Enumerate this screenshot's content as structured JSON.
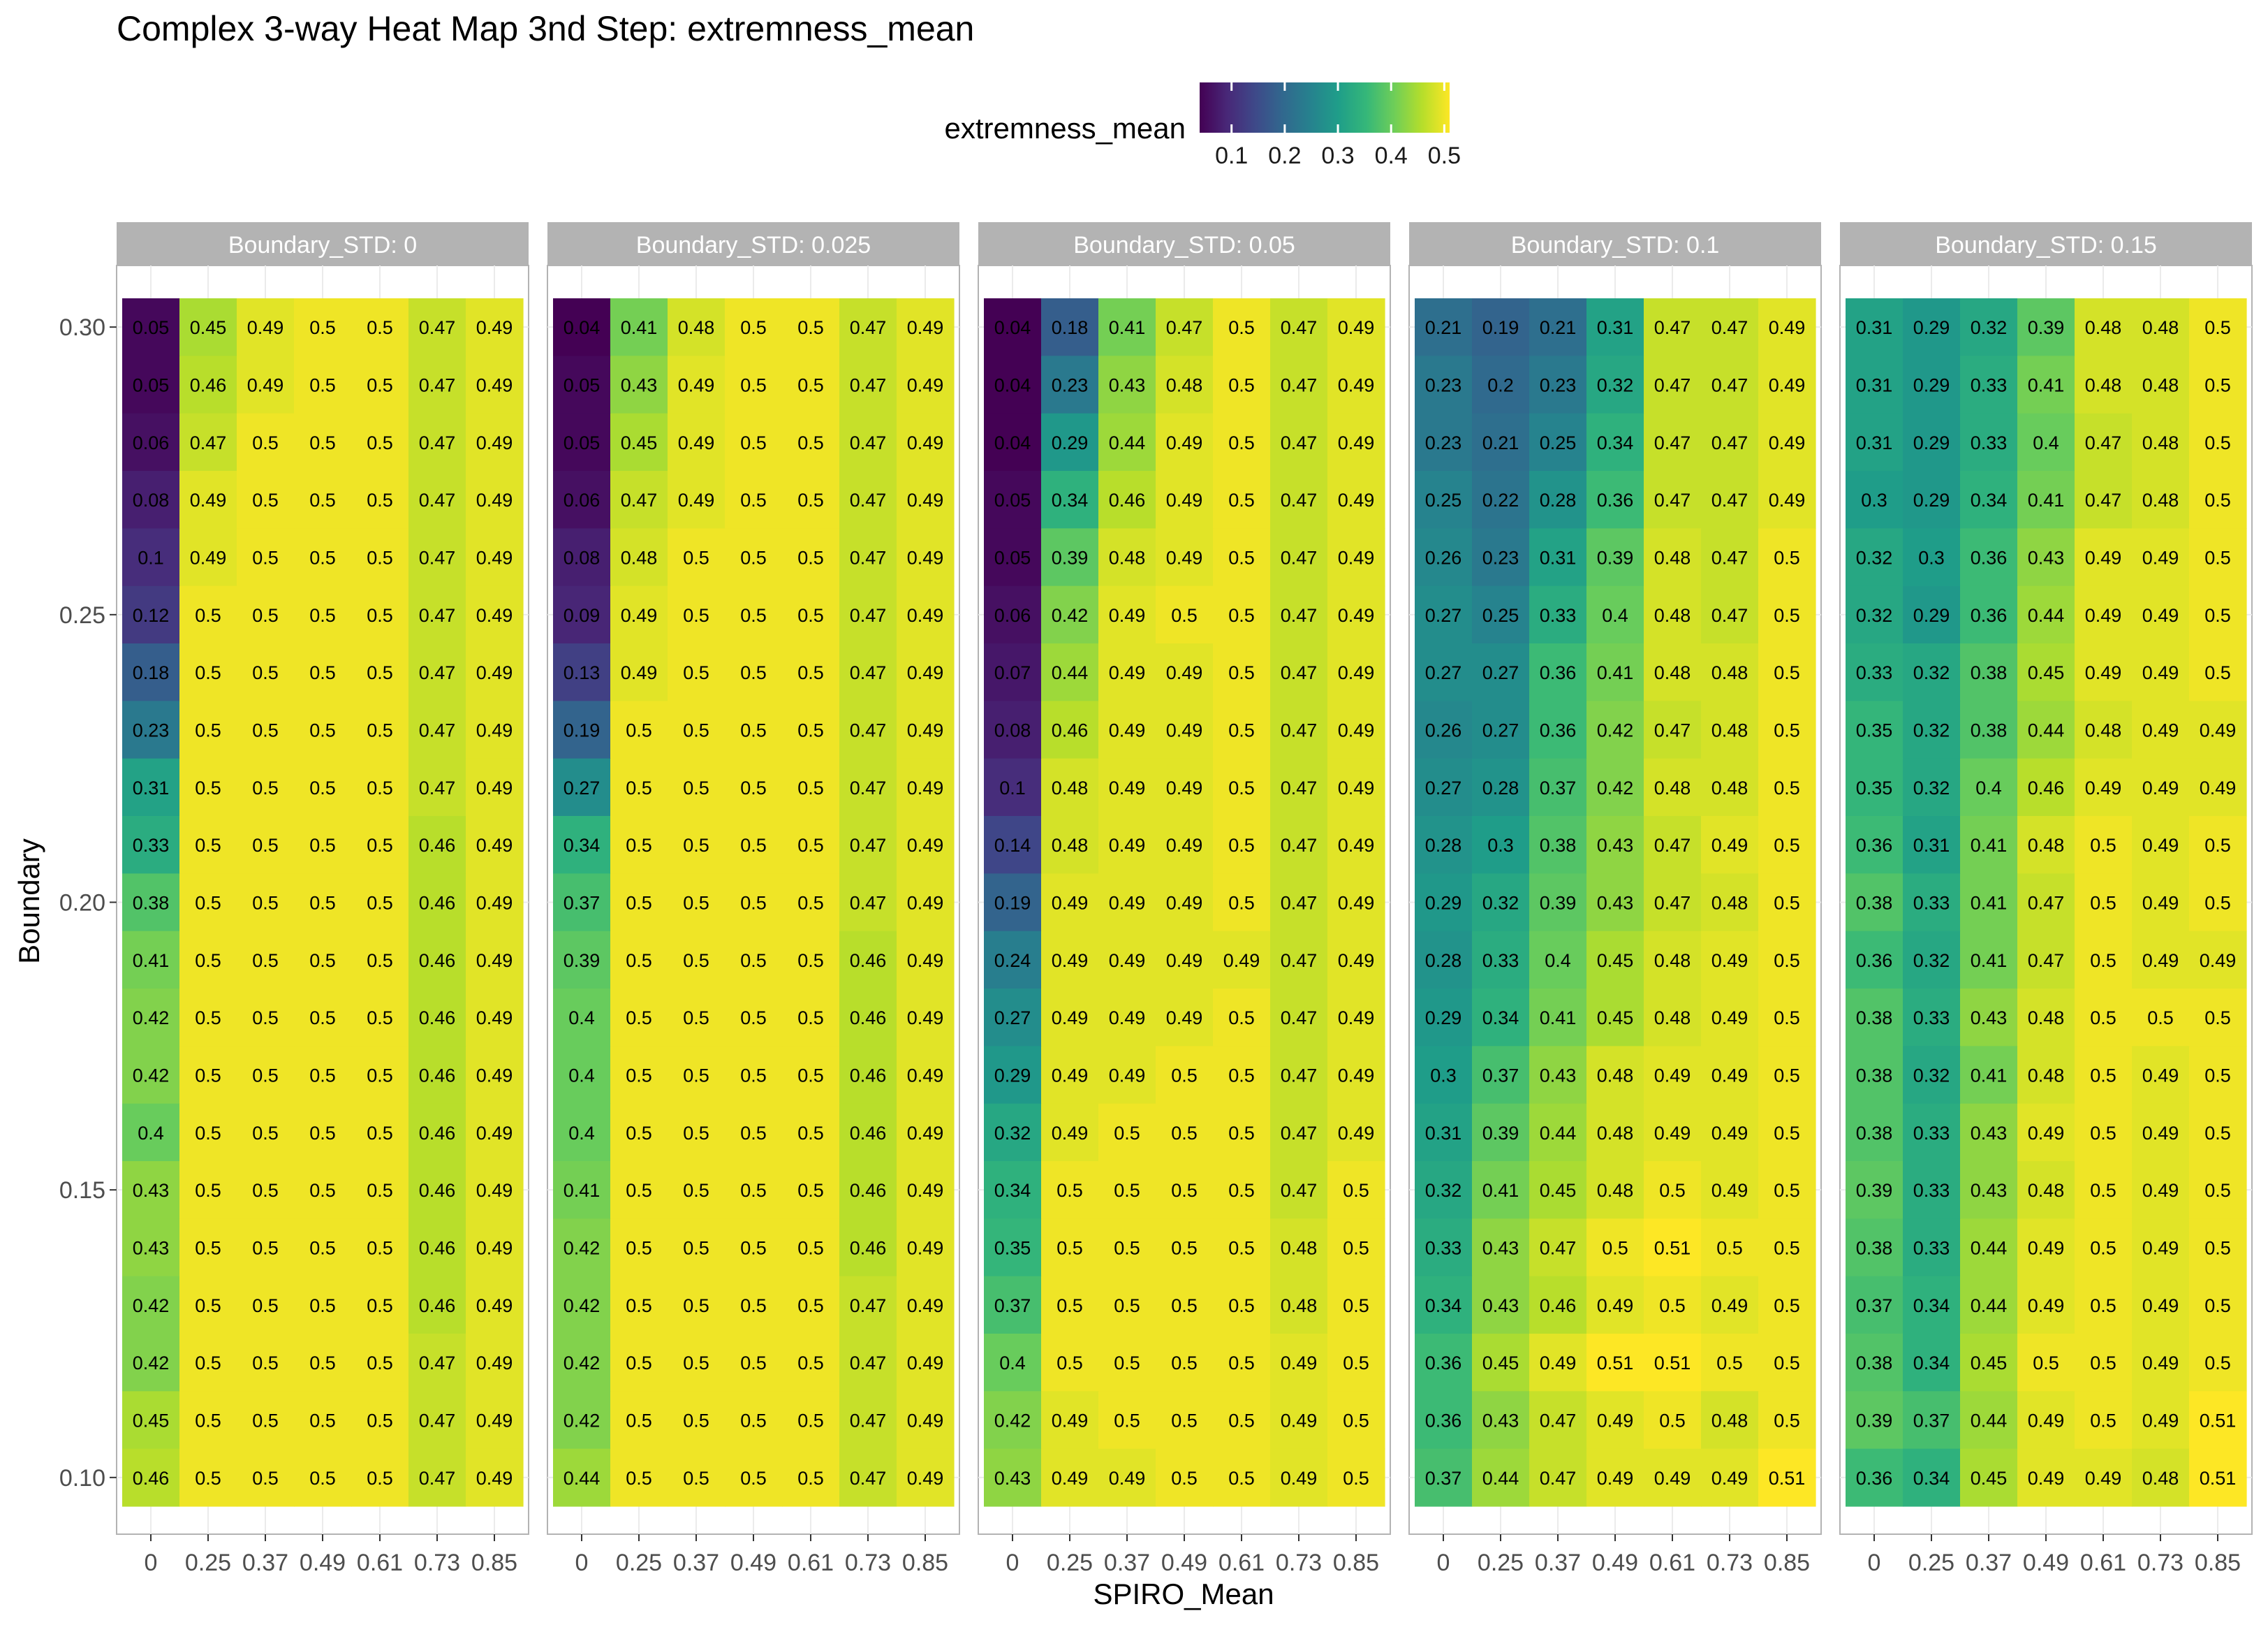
{
  "chart_data": {
    "type": "heatmap",
    "title": "Complex 3-way Heat Map 3nd Step: extremness_mean",
    "xlabel": "SPIRO_Mean",
    "ylabel": "Boundary",
    "legend": {
      "title": "extremness_mean",
      "position": "top",
      "ticks": [
        "0.1",
        "0.2",
        "0.3",
        "0.4",
        "0.5"
      ],
      "range": [
        0.04,
        0.51
      ]
    },
    "color_stops": [
      "#440154",
      "#482878",
      "#3e4989",
      "#31688e",
      "#26828e",
      "#1f9e89",
      "#35b779",
      "#6ece58",
      "#b5de2b",
      "#fde725"
    ],
    "x_categories": [
      "0",
      "0.25",
      "0.37",
      "0.49",
      "0.61",
      "0.73",
      "0.85"
    ],
    "y_values": [
      0.3,
      0.29,
      0.28,
      0.27,
      0.26,
      0.25,
      0.24,
      0.23,
      0.22,
      0.21,
      0.2,
      0.19,
      0.18,
      0.17,
      0.16,
      0.15,
      0.14,
      0.13,
      0.12,
      0.11,
      0.1
    ],
    "y_ticks": [
      "0.30",
      "0.25",
      "0.20",
      "0.15",
      "0.10"
    ],
    "y_tick_values": [
      0.3,
      0.25,
      0.2,
      0.15,
      0.1
    ],
    "facets": [
      {
        "label": "Boundary_STD: 0",
        "rows": [
          [
            "0.05",
            "0.45",
            "0.49",
            "0.5",
            "0.5",
            "0.47",
            "0.49"
          ],
          [
            "0.05",
            "0.46",
            "0.49",
            "0.5",
            "0.5",
            "0.47",
            "0.49"
          ],
          [
            "0.06",
            "0.47",
            "0.5",
            "0.5",
            "0.5",
            "0.47",
            "0.49"
          ],
          [
            "0.08",
            "0.49",
            "0.5",
            "0.5",
            "0.5",
            "0.47",
            "0.49"
          ],
          [
            "0.1",
            "0.49",
            "0.5",
            "0.5",
            "0.5",
            "0.47",
            "0.49"
          ],
          [
            "0.12",
            "0.5",
            "0.5",
            "0.5",
            "0.5",
            "0.47",
            "0.49"
          ],
          [
            "0.18",
            "0.5",
            "0.5",
            "0.5",
            "0.5",
            "0.47",
            "0.49"
          ],
          [
            "0.23",
            "0.5",
            "0.5",
            "0.5",
            "0.5",
            "0.47",
            "0.49"
          ],
          [
            "0.31",
            "0.5",
            "0.5",
            "0.5",
            "0.5",
            "0.47",
            "0.49"
          ],
          [
            "0.33",
            "0.5",
            "0.5",
            "0.5",
            "0.5",
            "0.46",
            "0.49"
          ],
          [
            "0.38",
            "0.5",
            "0.5",
            "0.5",
            "0.5",
            "0.46",
            "0.49"
          ],
          [
            "0.41",
            "0.5",
            "0.5",
            "0.5",
            "0.5",
            "0.46",
            "0.49"
          ],
          [
            "0.42",
            "0.5",
            "0.5",
            "0.5",
            "0.5",
            "0.46",
            "0.49"
          ],
          [
            "0.42",
            "0.5",
            "0.5",
            "0.5",
            "0.5",
            "0.46",
            "0.49"
          ],
          [
            "0.4",
            "0.5",
            "0.5",
            "0.5",
            "0.5",
            "0.46",
            "0.49"
          ],
          [
            "0.43",
            "0.5",
            "0.5",
            "0.5",
            "0.5",
            "0.46",
            "0.49"
          ],
          [
            "0.43",
            "0.5",
            "0.5",
            "0.5",
            "0.5",
            "0.46",
            "0.49"
          ],
          [
            "0.42",
            "0.5",
            "0.5",
            "0.5",
            "0.5",
            "0.46",
            "0.49"
          ],
          [
            "0.42",
            "0.5",
            "0.5",
            "0.5",
            "0.5",
            "0.47",
            "0.49"
          ],
          [
            "0.45",
            "0.5",
            "0.5",
            "0.5",
            "0.5",
            "0.47",
            "0.49"
          ],
          [
            "0.46",
            "0.5",
            "0.5",
            "0.5",
            "0.5",
            "0.47",
            "0.49"
          ]
        ]
      },
      {
        "label": "Boundary_STD: 0.025",
        "rows": [
          [
            "0.04",
            "0.41",
            "0.48",
            "0.5",
            "0.5",
            "0.47",
            "0.49"
          ],
          [
            "0.05",
            "0.43",
            "0.49",
            "0.5",
            "0.5",
            "0.47",
            "0.49"
          ],
          [
            "0.05",
            "0.45",
            "0.49",
            "0.5",
            "0.5",
            "0.47",
            "0.49"
          ],
          [
            "0.06",
            "0.47",
            "0.49",
            "0.5",
            "0.5",
            "0.47",
            "0.49"
          ],
          [
            "0.08",
            "0.48",
            "0.5",
            "0.5",
            "0.5",
            "0.47",
            "0.49"
          ],
          [
            "0.09",
            "0.49",
            "0.5",
            "0.5",
            "0.5",
            "0.47",
            "0.49"
          ],
          [
            "0.13",
            "0.49",
            "0.5",
            "0.5",
            "0.5",
            "0.47",
            "0.49"
          ],
          [
            "0.19",
            "0.5",
            "0.5",
            "0.5",
            "0.5",
            "0.47",
            "0.49"
          ],
          [
            "0.27",
            "0.5",
            "0.5",
            "0.5",
            "0.5",
            "0.47",
            "0.49"
          ],
          [
            "0.34",
            "0.5",
            "0.5",
            "0.5",
            "0.5",
            "0.47",
            "0.49"
          ],
          [
            "0.37",
            "0.5",
            "0.5",
            "0.5",
            "0.5",
            "0.47",
            "0.49"
          ],
          [
            "0.39",
            "0.5",
            "0.5",
            "0.5",
            "0.5",
            "0.46",
            "0.49"
          ],
          [
            "0.4",
            "0.5",
            "0.5",
            "0.5",
            "0.5",
            "0.46",
            "0.49"
          ],
          [
            "0.4",
            "0.5",
            "0.5",
            "0.5",
            "0.5",
            "0.46",
            "0.49"
          ],
          [
            "0.4",
            "0.5",
            "0.5",
            "0.5",
            "0.5",
            "0.46",
            "0.49"
          ],
          [
            "0.41",
            "0.5",
            "0.5",
            "0.5",
            "0.5",
            "0.46",
            "0.49"
          ],
          [
            "0.42",
            "0.5",
            "0.5",
            "0.5",
            "0.5",
            "0.46",
            "0.49"
          ],
          [
            "0.42",
            "0.5",
            "0.5",
            "0.5",
            "0.5",
            "0.47",
            "0.49"
          ],
          [
            "0.42",
            "0.5",
            "0.5",
            "0.5",
            "0.5",
            "0.47",
            "0.49"
          ],
          [
            "0.42",
            "0.5",
            "0.5",
            "0.5",
            "0.5",
            "0.47",
            "0.49"
          ],
          [
            "0.44",
            "0.5",
            "0.5",
            "0.5",
            "0.5",
            "0.47",
            "0.49"
          ]
        ]
      },
      {
        "label": "Boundary_STD: 0.05",
        "rows": [
          [
            "0.04",
            "0.18",
            "0.41",
            "0.47",
            "0.5",
            "0.47",
            "0.49"
          ],
          [
            "0.04",
            "0.23",
            "0.43",
            "0.48",
            "0.5",
            "0.47",
            "0.49"
          ],
          [
            "0.04",
            "0.29",
            "0.44",
            "0.49",
            "0.5",
            "0.47",
            "0.49"
          ],
          [
            "0.05",
            "0.34",
            "0.46",
            "0.49",
            "0.5",
            "0.47",
            "0.49"
          ],
          [
            "0.05",
            "0.39",
            "0.48",
            "0.49",
            "0.5",
            "0.47",
            "0.49"
          ],
          [
            "0.06",
            "0.42",
            "0.49",
            "0.5",
            "0.5",
            "0.47",
            "0.49"
          ],
          [
            "0.07",
            "0.44",
            "0.49",
            "0.49",
            "0.5",
            "0.47",
            "0.49"
          ],
          [
            "0.08",
            "0.46",
            "0.49",
            "0.49",
            "0.5",
            "0.47",
            "0.49"
          ],
          [
            "0.1",
            "0.48",
            "0.49",
            "0.49",
            "0.5",
            "0.47",
            "0.49"
          ],
          [
            "0.14",
            "0.48",
            "0.49",
            "0.49",
            "0.5",
            "0.47",
            "0.49"
          ],
          [
            "0.19",
            "0.49",
            "0.49",
            "0.49",
            "0.5",
            "0.47",
            "0.49"
          ],
          [
            "0.24",
            "0.49",
            "0.49",
            "0.49",
            "0.49",
            "0.47",
            "0.49"
          ],
          [
            "0.27",
            "0.49",
            "0.49",
            "0.49",
            "0.5",
            "0.47",
            "0.49"
          ],
          [
            "0.29",
            "0.49",
            "0.49",
            "0.5",
            "0.5",
            "0.47",
            "0.49"
          ],
          [
            "0.32",
            "0.49",
            "0.5",
            "0.5",
            "0.5",
            "0.47",
            "0.49"
          ],
          [
            "0.34",
            "0.5",
            "0.5",
            "0.5",
            "0.5",
            "0.47",
            "0.5"
          ],
          [
            "0.35",
            "0.5",
            "0.5",
            "0.5",
            "0.5",
            "0.48",
            "0.5"
          ],
          [
            "0.37",
            "0.5",
            "0.5",
            "0.5",
            "0.5",
            "0.48",
            "0.5"
          ],
          [
            "0.4",
            "0.5",
            "0.5",
            "0.5",
            "0.5",
            "0.49",
            "0.5"
          ],
          [
            "0.42",
            "0.49",
            "0.5",
            "0.5",
            "0.5",
            "0.49",
            "0.5"
          ],
          [
            "0.43",
            "0.49",
            "0.49",
            "0.5",
            "0.5",
            "0.49",
            "0.5"
          ]
        ]
      },
      {
        "label": "Boundary_STD: 0.1",
        "rows": [
          [
            "0.21",
            "0.19",
            "0.21",
            "0.31",
            "0.47",
            "0.47",
            "0.49"
          ],
          [
            "0.23",
            "0.2",
            "0.23",
            "0.32",
            "0.47",
            "0.47",
            "0.49"
          ],
          [
            "0.23",
            "0.21",
            "0.25",
            "0.34",
            "0.47",
            "0.47",
            "0.49"
          ],
          [
            "0.25",
            "0.22",
            "0.28",
            "0.36",
            "0.47",
            "0.47",
            "0.49"
          ],
          [
            "0.26",
            "0.23",
            "0.31",
            "0.39",
            "0.48",
            "0.47",
            "0.5"
          ],
          [
            "0.27",
            "0.25",
            "0.33",
            "0.4",
            "0.48",
            "0.47",
            "0.5"
          ],
          [
            "0.27",
            "0.27",
            "0.36",
            "0.41",
            "0.48",
            "0.48",
            "0.5"
          ],
          [
            "0.26",
            "0.27",
            "0.36",
            "0.42",
            "0.47",
            "0.48",
            "0.5"
          ],
          [
            "0.27",
            "0.28",
            "0.37",
            "0.42",
            "0.48",
            "0.48",
            "0.5"
          ],
          [
            "0.28",
            "0.3",
            "0.38",
            "0.43",
            "0.47",
            "0.49",
            "0.5"
          ],
          [
            "0.29",
            "0.32",
            "0.39",
            "0.43",
            "0.47",
            "0.48",
            "0.5"
          ],
          [
            "0.28",
            "0.33",
            "0.4",
            "0.45",
            "0.48",
            "0.49",
            "0.5"
          ],
          [
            "0.29",
            "0.34",
            "0.41",
            "0.45",
            "0.48",
            "0.49",
            "0.5"
          ],
          [
            "0.3",
            "0.37",
            "0.43",
            "0.48",
            "0.49",
            "0.49",
            "0.5"
          ],
          [
            "0.31",
            "0.39",
            "0.44",
            "0.48",
            "0.49",
            "0.49",
            "0.5"
          ],
          [
            "0.32",
            "0.41",
            "0.45",
            "0.48",
            "0.5",
            "0.49",
            "0.5"
          ],
          [
            "0.33",
            "0.43",
            "0.47",
            "0.5",
            "0.51",
            "0.5",
            "0.5"
          ],
          [
            "0.34",
            "0.43",
            "0.46",
            "0.49",
            "0.5",
            "0.49",
            "0.5"
          ],
          [
            "0.36",
            "0.45",
            "0.49",
            "0.51",
            "0.51",
            "0.5",
            "0.5"
          ],
          [
            "0.36",
            "0.43",
            "0.47",
            "0.49",
            "0.5",
            "0.48",
            "0.5"
          ],
          [
            "0.37",
            "0.44",
            "0.47",
            "0.49",
            "0.49",
            "0.49",
            "0.51"
          ]
        ]
      },
      {
        "label": "Boundary_STD: 0.15",
        "rows": [
          [
            "0.31",
            "0.29",
            "0.32",
            "0.39",
            "0.48",
            "0.48",
            "0.5"
          ],
          [
            "0.31",
            "0.29",
            "0.33",
            "0.41",
            "0.48",
            "0.48",
            "0.5"
          ],
          [
            "0.31",
            "0.29",
            "0.33",
            "0.4",
            "0.47",
            "0.48",
            "0.5"
          ],
          [
            "0.3",
            "0.29",
            "0.34",
            "0.41",
            "0.47",
            "0.48",
            "0.5"
          ],
          [
            "0.32",
            "0.3",
            "0.36",
            "0.43",
            "0.49",
            "0.49",
            "0.5"
          ],
          [
            "0.32",
            "0.29",
            "0.36",
            "0.44",
            "0.49",
            "0.49",
            "0.5"
          ],
          [
            "0.33",
            "0.32",
            "0.38",
            "0.45",
            "0.49",
            "0.49",
            "0.5"
          ],
          [
            "0.35",
            "0.32",
            "0.38",
            "0.44",
            "0.48",
            "0.49",
            "0.49"
          ],
          [
            "0.35",
            "0.32",
            "0.4",
            "0.46",
            "0.49",
            "0.49",
            "0.49"
          ],
          [
            "0.36",
            "0.31",
            "0.41",
            "0.48",
            "0.5",
            "0.49",
            "0.5"
          ],
          [
            "0.38",
            "0.33",
            "0.41",
            "0.47",
            "0.5",
            "0.49",
            "0.5"
          ],
          [
            "0.36",
            "0.32",
            "0.41",
            "0.47",
            "0.5",
            "0.49",
            "0.49"
          ],
          [
            "0.38",
            "0.33",
            "0.43",
            "0.48",
            "0.5",
            "0.5",
            "0.5"
          ],
          [
            "0.38",
            "0.32",
            "0.41",
            "0.48",
            "0.5",
            "0.49",
            "0.5"
          ],
          [
            "0.38",
            "0.33",
            "0.43",
            "0.49",
            "0.5",
            "0.49",
            "0.5"
          ],
          [
            "0.39",
            "0.33",
            "0.43",
            "0.48",
            "0.5",
            "0.49",
            "0.5"
          ],
          [
            "0.38",
            "0.33",
            "0.44",
            "0.49",
            "0.5",
            "0.49",
            "0.5"
          ],
          [
            "0.37",
            "0.34",
            "0.44",
            "0.49",
            "0.5",
            "0.49",
            "0.5"
          ],
          [
            "0.38",
            "0.34",
            "0.45",
            "0.5",
            "0.5",
            "0.49",
            "0.5"
          ],
          [
            "0.39",
            "0.37",
            "0.44",
            "0.49",
            "0.5",
            "0.49",
            "0.51"
          ],
          [
            "0.36",
            "0.34",
            "0.45",
            "0.49",
            "0.49",
            "0.48",
            "0.51"
          ]
        ]
      }
    ]
  }
}
